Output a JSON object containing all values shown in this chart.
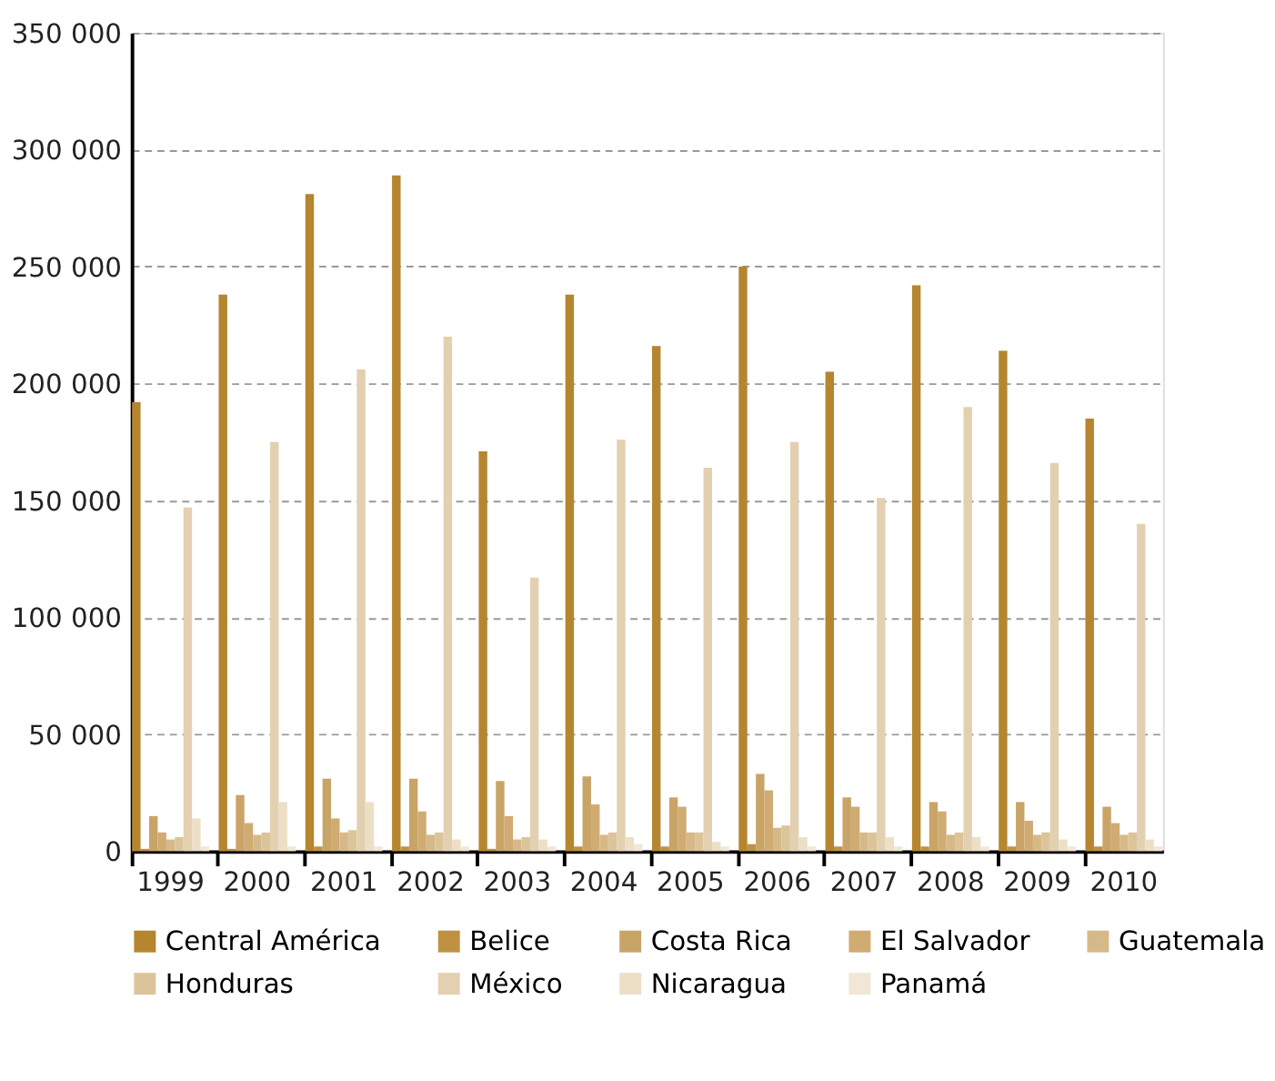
{
  "chart_data": {
    "type": "bar",
    "categories": [
      "1999",
      "2000",
      "2001",
      "2002",
      "2003",
      "2004",
      "2005",
      "2006",
      "2007",
      "2008",
      "2009",
      "2010"
    ],
    "series": [
      {
        "name": "Central América",
        "color": "#b5862f",
        "values": [
          192000,
          238000,
          281000,
          289000,
          171000,
          238000,
          216000,
          250000,
          205000,
          242000,
          214000,
          185000
        ]
      },
      {
        "name": "Belice",
        "color": "#bf9142",
        "values": [
          1000,
          1000,
          2000,
          2000,
          1000,
          2000,
          2000,
          3000,
          2000,
          2000,
          2000,
          2000
        ]
      },
      {
        "name": "Costa Rica",
        "color": "#c9a467",
        "values": [
          15000,
          24000,
          31000,
          31000,
          30000,
          32000,
          23000,
          33000,
          23000,
          21000,
          21000,
          19000
        ]
      },
      {
        "name": "El Salvador",
        "color": "#d0ab72",
        "values": [
          8000,
          12000,
          14000,
          17000,
          15000,
          20000,
          19000,
          26000,
          19000,
          17000,
          13000,
          12000
        ]
      },
      {
        "name": "Guatemala",
        "color": "#d6b988",
        "values": [
          5000,
          7000,
          8000,
          7000,
          5000,
          7000,
          8000,
          10000,
          8000,
          7000,
          7000,
          7000
        ]
      },
      {
        "name": "Honduras",
        "color": "#dcc49a",
        "values": [
          6000,
          8000,
          9000,
          8000,
          6000,
          8000,
          8000,
          11000,
          8000,
          8000,
          8000,
          8000
        ]
      },
      {
        "name": "México",
        "color": "#e3d0b0",
        "values": [
          147000,
          175000,
          206000,
          220000,
          117000,
          176000,
          164000,
          175000,
          151000,
          190000,
          166000,
          140000
        ]
      },
      {
        "name": "Nicaragua",
        "color": "#ecdfc6",
        "values": [
          14000,
          21000,
          21000,
          5000,
          5000,
          6000,
          4000,
          6000,
          6000,
          6000,
          5000,
          5000
        ]
      },
      {
        "name": "Panamá",
        "color": "#f1e7d6",
        "values": [
          2000,
          2000,
          2000,
          2000,
          2000,
          3000,
          2000,
          2000,
          2000,
          2000,
          2000,
          2000
        ]
      }
    ],
    "ylim": [
      0,
      350000
    ],
    "yticks": [
      0,
      {
        "value": 50000,
        "label": "50 000"
      },
      {
        "value": 100000,
        "label": "100 000"
      },
      {
        "value": 150000,
        "label": "150 000"
      },
      {
        "value": 200000,
        "label": "200 000"
      },
      {
        "value": 250000,
        "label": "250 000"
      },
      {
        "value": 300000,
        "label": "300 000"
      },
      {
        "value": 350000,
        "label": "350 000"
      }
    ],
    "grid": "y",
    "legend": "bottom"
  }
}
